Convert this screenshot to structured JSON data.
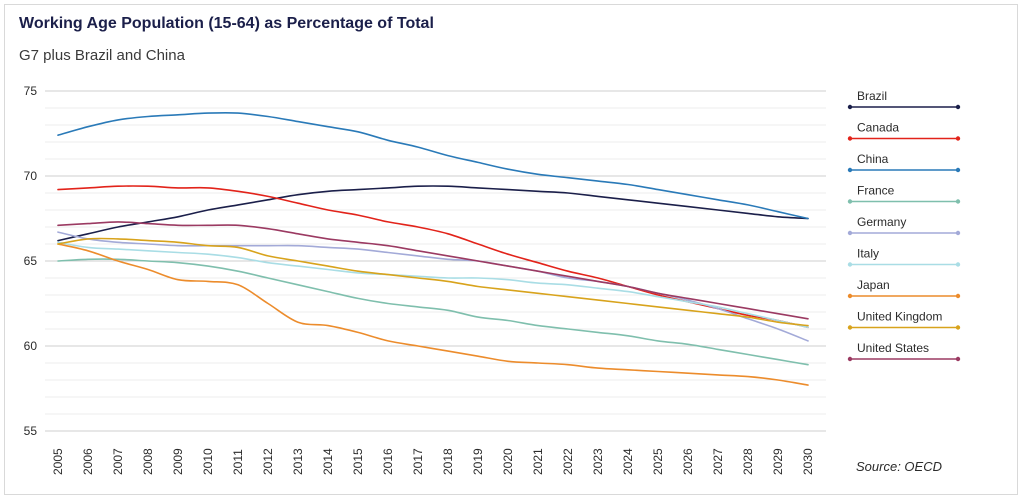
{
  "chart_data": {
    "type": "line",
    "title": "Working Age Population (15-64) as Percentage of Total",
    "subtitle": "G7 plus Brazil and China",
    "source": "Source: OECD",
    "x": [
      "2005",
      "2006",
      "2007",
      "2008",
      "2009",
      "2010",
      "2011",
      "2012",
      "2013",
      "2014",
      "2015",
      "2016",
      "2017",
      "2018",
      "2019",
      "2020",
      "2021",
      "2022",
      "2023",
      "2024",
      "2025",
      "2026",
      "2027",
      "2028",
      "2029",
      "2030"
    ],
    "ylim": [
      55,
      75
    ],
    "yticks": [
      55,
      60,
      65,
      70,
      75
    ],
    "grid": true,
    "legend_position": "right",
    "series": [
      {
        "name": "Brazil",
        "color": "#1b1f4a",
        "values": [
          66.2,
          66.6,
          67.0,
          67.3,
          67.6,
          68.0,
          68.3,
          68.6,
          68.9,
          69.1,
          69.2,
          69.3,
          69.4,
          69.4,
          69.3,
          69.2,
          69.1,
          69.0,
          68.8,
          68.6,
          68.4,
          68.2,
          68.0,
          67.8,
          67.6,
          67.5
        ]
      },
      {
        "name": "Canada",
        "color": "#e2231a",
        "values": [
          69.2,
          69.3,
          69.4,
          69.4,
          69.3,
          69.3,
          69.1,
          68.8,
          68.4,
          68.0,
          67.7,
          67.3,
          67.0,
          66.6,
          66.0,
          65.4,
          64.9,
          64.4,
          64.0,
          63.5,
          63.0,
          62.6,
          62.2,
          61.8,
          61.5,
          61.1
        ]
      },
      {
        "name": "China",
        "color": "#2a7ab8",
        "values": [
          72.4,
          72.9,
          73.3,
          73.5,
          73.6,
          73.7,
          73.7,
          73.5,
          73.2,
          72.9,
          72.6,
          72.1,
          71.7,
          71.2,
          70.8,
          70.4,
          70.1,
          69.9,
          69.7,
          69.5,
          69.2,
          68.9,
          68.6,
          68.3,
          67.9,
          67.5
        ]
      },
      {
        "name": "France",
        "color": "#7fbfad",
        "values": [
          65.0,
          65.1,
          65.1,
          65.0,
          64.9,
          64.7,
          64.4,
          64.0,
          63.6,
          63.2,
          62.8,
          62.5,
          62.3,
          62.1,
          61.7,
          61.5,
          61.2,
          61.0,
          60.8,
          60.6,
          60.3,
          60.1,
          59.8,
          59.5,
          59.2,
          58.9
        ]
      },
      {
        "name": "Germany",
        "color": "#a3aad8",
        "values": [
          66.7,
          66.3,
          66.1,
          66.0,
          65.9,
          65.9,
          65.9,
          65.9,
          65.9,
          65.8,
          65.7,
          65.5,
          65.3,
          65.1,
          65.0,
          64.7,
          64.4,
          64.0,
          63.8,
          63.5,
          63.1,
          62.7,
          62.2,
          61.6,
          61.0,
          60.3
        ]
      },
      {
        "name": "Italy",
        "color": "#a9dde5",
        "values": [
          66.1,
          65.8,
          65.7,
          65.6,
          65.5,
          65.4,
          65.2,
          64.9,
          64.7,
          64.5,
          64.3,
          64.2,
          64.1,
          64.0,
          64.0,
          63.9,
          63.7,
          63.6,
          63.4,
          63.2,
          62.9,
          62.6,
          62.3,
          61.9,
          61.5,
          61.1
        ]
      },
      {
        "name": "Japan",
        "color": "#ec8c2c",
        "values": [
          66.0,
          65.6,
          65.0,
          64.5,
          63.9,
          63.8,
          63.6,
          62.5,
          61.4,
          61.2,
          60.8,
          60.3,
          60.0,
          59.7,
          59.4,
          59.1,
          59.0,
          58.9,
          58.7,
          58.6,
          58.5,
          58.4,
          58.3,
          58.2,
          58.0,
          57.7
        ]
      },
      {
        "name": "United Kingdom",
        "color": "#d8a31c",
        "values": [
          66.0,
          66.3,
          66.3,
          66.2,
          66.1,
          65.9,
          65.8,
          65.3,
          65.0,
          64.7,
          64.4,
          64.2,
          64.0,
          63.8,
          63.5,
          63.3,
          63.1,
          62.9,
          62.7,
          62.5,
          62.3,
          62.1,
          61.9,
          61.7,
          61.4,
          61.2
        ]
      },
      {
        "name": "United States",
        "color": "#9b3a62",
        "values": [
          67.1,
          67.2,
          67.3,
          67.2,
          67.1,
          67.1,
          67.1,
          66.9,
          66.6,
          66.3,
          66.1,
          65.9,
          65.6,
          65.3,
          65.0,
          64.7,
          64.4,
          64.1,
          63.8,
          63.5,
          63.1,
          62.8,
          62.5,
          62.2,
          61.9,
          61.6
        ]
      }
    ]
  }
}
